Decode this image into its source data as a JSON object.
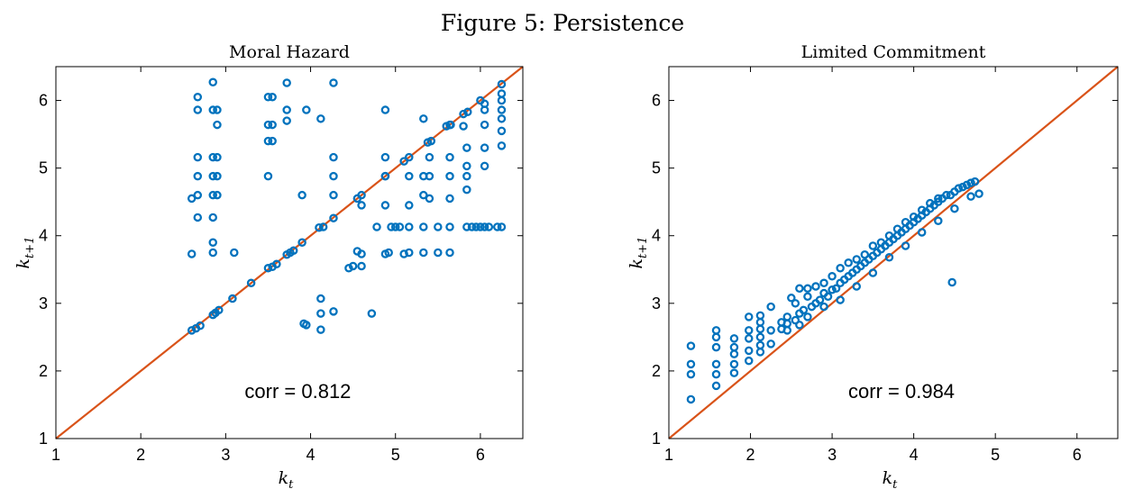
{
  "figure": {
    "title": "Figure 5: Persistence"
  },
  "colors": {
    "points": "#0072BD",
    "diagonal": "#D95319",
    "axes": "#000000"
  },
  "chart_data": [
    {
      "type": "scatter",
      "title": "Moral Hazard",
      "xlabel": "k",
      "xlabel_sub": "t",
      "ylabel": "k",
      "ylabel_sub": "t+1",
      "xlim": [
        1,
        6.5
      ],
      "ylim": [
        1,
        6.5
      ],
      "xticks": [
        1,
        2,
        3,
        4,
        5,
        6
      ],
      "yticks": [
        1,
        2,
        3,
        4,
        5,
        6
      ],
      "annotation": "corr = 0.812",
      "reference_line": "y = x",
      "series": [
        {
          "values": [
            [
              2.6,
              2.6
            ],
            [
              2.65,
              2.63
            ],
            [
              2.7,
              2.67
            ],
            [
              2.85,
              2.83
            ],
            [
              2.88,
              2.86
            ],
            [
              2.92,
              2.9
            ],
            [
              3.08,
              3.07
            ],
            [
              3.3,
              3.3
            ],
            [
              3.5,
              3.52
            ],
            [
              3.55,
              3.54
            ],
            [
              3.6,
              3.58
            ],
            [
              3.72,
              3.72
            ],
            [
              3.76,
              3.75
            ],
            [
              3.8,
              3.78
            ],
            [
              3.9,
              3.9
            ],
            [
              4.1,
              4.12
            ],
            [
              4.15,
              4.13
            ],
            [
              4.27,
              4.26
            ],
            [
              4.55,
              4.55
            ],
            [
              4.6,
              4.6
            ],
            [
              4.88,
              4.88
            ],
            [
              5.1,
              5.1
            ],
            [
              5.16,
              5.16
            ],
            [
              5.38,
              5.38
            ],
            [
              5.42,
              5.4
            ],
            [
              5.6,
              5.62
            ],
            [
              5.65,
              5.64
            ],
            [
              5.8,
              5.8
            ],
            [
              5.85,
              5.83
            ],
            [
              6.0,
              6.0
            ],
            [
              6.25,
              6.24
            ],
            [
              2.6,
              3.73
            ],
            [
              2.6,
              4.55
            ],
            [
              2.67,
              6.05
            ],
            [
              2.67,
              5.86
            ],
            [
              2.67,
              5.16
            ],
            [
              2.67,
              4.88
            ],
            [
              2.67,
              4.6
            ],
            [
              2.67,
              4.27
            ],
            [
              2.85,
              6.27
            ],
            [
              2.85,
              5.86
            ],
            [
              2.85,
              5.16
            ],
            [
              2.85,
              4.88
            ],
            [
              2.85,
              4.6
            ],
            [
              2.85,
              4.27
            ],
            [
              2.85,
              3.9
            ],
            [
              2.85,
              3.75
            ],
            [
              2.9,
              5.86
            ],
            [
              2.9,
              5.64
            ],
            [
              2.9,
              5.16
            ],
            [
              2.9,
              4.88
            ],
            [
              2.9,
              4.6
            ],
            [
              3.1,
              3.75
            ],
            [
              3.5,
              6.05
            ],
            [
              3.55,
              6.05
            ],
            [
              3.5,
              5.64
            ],
            [
              3.55,
              5.64
            ],
            [
              3.5,
              5.4
            ],
            [
              3.55,
              5.4
            ],
            [
              3.5,
              4.88
            ],
            [
              3.72,
              6.26
            ],
            [
              3.72,
              5.86
            ],
            [
              3.72,
              5.7
            ],
            [
              3.95,
              5.86
            ],
            [
              3.9,
              4.6
            ],
            [
              4.12,
              5.73
            ],
            [
              4.27,
              6.26
            ],
            [
              4.27,
              5.16
            ],
            [
              4.27,
              4.88
            ],
            [
              4.27,
              4.6
            ],
            [
              3.92,
              2.7
            ],
            [
              3.95,
              2.68
            ],
            [
              4.12,
              3.07
            ],
            [
              4.12,
              2.85
            ],
            [
              4.12,
              2.61
            ],
            [
              4.27,
              2.88
            ],
            [
              4.72,
              2.85
            ],
            [
              4.45,
              3.52
            ],
            [
              4.5,
              3.55
            ],
            [
              4.6,
              3.55
            ],
            [
              4.6,
              3.73
            ],
            [
              4.55,
              3.77
            ],
            [
              4.78,
              4.13
            ],
            [
              4.6,
              4.45
            ],
            [
              4.88,
              5.86
            ],
            [
              4.88,
              5.16
            ],
            [
              4.88,
              4.88
            ],
            [
              4.88,
              4.45
            ],
            [
              4.88,
              3.73
            ],
            [
              4.92,
              3.75
            ],
            [
              4.95,
              4.13
            ],
            [
              5.0,
              4.13
            ],
            [
              5.05,
              4.13
            ],
            [
              5.1,
              3.73
            ],
            [
              5.16,
              3.75
            ],
            [
              5.16,
              4.13
            ],
            [
              5.16,
              4.88
            ],
            [
              5.16,
              4.45
            ],
            [
              5.33,
              5.73
            ],
            [
              5.33,
              4.88
            ],
            [
              5.33,
              4.6
            ],
            [
              5.33,
              4.13
            ],
            [
              5.33,
              3.75
            ],
            [
              5.4,
              5.16
            ],
            [
              5.4,
              4.88
            ],
            [
              5.4,
              4.55
            ],
            [
              5.5,
              4.13
            ],
            [
              5.5,
              3.75
            ],
            [
              5.64,
              5.64
            ],
            [
              5.64,
              5.16
            ],
            [
              5.64,
              4.88
            ],
            [
              5.64,
              4.55
            ],
            [
              5.64,
              4.13
            ],
            [
              5.64,
              3.75
            ],
            [
              5.8,
              5.62
            ],
            [
              5.84,
              5.3
            ],
            [
              5.84,
              5.03
            ],
            [
              5.84,
              4.88
            ],
            [
              5.84,
              4.68
            ],
            [
              5.84,
              4.13
            ],
            [
              5.9,
              4.13
            ],
            [
              5.95,
              4.13
            ],
            [
              6.0,
              4.13
            ],
            [
              6.05,
              5.95
            ],
            [
              6.05,
              5.86
            ],
            [
              6.05,
              5.64
            ],
            [
              6.05,
              5.3
            ],
            [
              6.05,
              5.03
            ],
            [
              6.05,
              4.13
            ],
            [
              6.1,
              4.13
            ],
            [
              6.2,
              4.13
            ],
            [
              6.25,
              6.1
            ],
            [
              6.25,
              6.0
            ],
            [
              6.25,
              5.86
            ],
            [
              6.25,
              5.73
            ],
            [
              6.25,
              5.55
            ],
            [
              6.25,
              5.33
            ],
            [
              6.25,
              4.13
            ]
          ]
        }
      ]
    },
    {
      "type": "scatter",
      "title": "Limited Commitment",
      "xlabel": "k",
      "xlabel_sub": "t",
      "ylabel": "k",
      "ylabel_sub": "t+1",
      "xlim": [
        1,
        6.5
      ],
      "ylim": [
        1,
        6.5
      ],
      "xticks": [
        1,
        2,
        3,
        4,
        5,
        6
      ],
      "yticks": [
        1,
        2,
        3,
        4,
        5,
        6
      ],
      "annotation": "corr = 0.984",
      "reference_line": "y = x",
      "series": [
        {
          "values": [
            [
              1.27,
              1.58
            ],
            [
              1.27,
              1.95
            ],
            [
              1.27,
              2.1
            ],
            [
              1.27,
              2.37
            ],
            [
              1.58,
              1.78
            ],
            [
              1.58,
              1.95
            ],
            [
              1.58,
              2.1
            ],
            [
              1.58,
              2.35
            ],
            [
              1.58,
              2.5
            ],
            [
              1.58,
              2.6
            ],
            [
              1.8,
              1.97
            ],
            [
              1.8,
              2.1
            ],
            [
              1.8,
              2.25
            ],
            [
              1.8,
              2.35
            ],
            [
              1.8,
              2.48
            ],
            [
              1.98,
              2.15
            ],
            [
              1.98,
              2.3
            ],
            [
              1.98,
              2.48
            ],
            [
              1.98,
              2.6
            ],
            [
              1.98,
              2.8
            ],
            [
              2.12,
              2.28
            ],
            [
              2.12,
              2.38
            ],
            [
              2.12,
              2.5
            ],
            [
              2.12,
              2.62
            ],
            [
              2.12,
              2.72
            ],
            [
              2.12,
              2.82
            ],
            [
              2.25,
              2.4
            ],
            [
              2.25,
              2.6
            ],
            [
              2.25,
              2.95
            ],
            [
              2.38,
              2.62
            ],
            [
              2.38,
              2.72
            ],
            [
              2.45,
              2.6
            ],
            [
              2.45,
              2.7
            ],
            [
              2.45,
              2.8
            ],
            [
              2.5,
              3.08
            ],
            [
              2.55,
              2.75
            ],
            [
              2.55,
              3.0
            ],
            [
              2.6,
              2.68
            ],
            [
              2.6,
              2.85
            ],
            [
              2.6,
              3.22
            ],
            [
              2.65,
              2.9
            ],
            [
              2.7,
              3.1
            ],
            [
              2.7,
              3.22
            ],
            [
              2.75,
              2.95
            ],
            [
              2.8,
              3.0
            ],
            [
              2.8,
              3.25
            ],
            [
              2.85,
              3.05
            ],
            [
              2.9,
              3.15
            ],
            [
              2.9,
              3.3
            ],
            [
              2.95,
              3.1
            ],
            [
              3.0,
              3.2
            ],
            [
              3.0,
              3.4
            ],
            [
              3.05,
              3.22
            ],
            [
              3.1,
              3.3
            ],
            [
              3.1,
              3.52
            ],
            [
              3.15,
              3.35
            ],
            [
              3.2,
              3.4
            ],
            [
              3.2,
              3.6
            ],
            [
              3.25,
              3.45
            ],
            [
              3.3,
              3.5
            ],
            [
              3.3,
              3.65
            ],
            [
              3.35,
              3.55
            ],
            [
              3.4,
              3.6
            ],
            [
              3.4,
              3.72
            ],
            [
              3.45,
              3.65
            ],
            [
              3.5,
              3.7
            ],
            [
              3.5,
              3.85
            ],
            [
              3.55,
              3.75
            ],
            [
              3.6,
              3.8
            ],
            [
              3.6,
              3.9
            ],
            [
              3.65,
              3.85
            ],
            [
              3.7,
              3.9
            ],
            [
              3.7,
              4.0
            ],
            [
              3.75,
              3.95
            ],
            [
              3.8,
              4.0
            ],
            [
              3.8,
              4.1
            ],
            [
              3.85,
              4.05
            ],
            [
              3.9,
              4.1
            ],
            [
              3.9,
              4.2
            ],
            [
              3.95,
              4.15
            ],
            [
              4.0,
              4.2
            ],
            [
              4.0,
              4.28
            ],
            [
              4.05,
              4.25
            ],
            [
              4.1,
              4.3
            ],
            [
              4.1,
              4.38
            ],
            [
              4.15,
              4.35
            ],
            [
              4.2,
              4.4
            ],
            [
              4.2,
              4.48
            ],
            [
              4.25,
              4.45
            ],
            [
              4.3,
              4.5
            ],
            [
              4.3,
              4.55
            ],
            [
              4.35,
              4.55
            ],
            [
              4.4,
              4.6
            ],
            [
              4.45,
              4.6
            ],
            [
              4.5,
              4.65
            ],
            [
              4.55,
              4.7
            ],
            [
              4.6,
              4.72
            ],
            [
              4.65,
              4.75
            ],
            [
              4.7,
              4.78
            ],
            [
              4.75,
              4.8
            ],
            [
              3.1,
              3.05
            ],
            [
              3.3,
              3.25
            ],
            [
              3.5,
              3.45
            ],
            [
              3.7,
              3.68
            ],
            [
              3.9,
              3.85
            ],
            [
              4.1,
              4.05
            ],
            [
              4.3,
              4.22
            ],
            [
              4.5,
              4.4
            ],
            [
              4.7,
              4.58
            ],
            [
              4.8,
              4.62
            ],
            [
              2.7,
              2.8
            ],
            [
              2.9,
              2.95
            ],
            [
              4.47,
              3.31
            ]
          ]
        }
      ]
    }
  ]
}
